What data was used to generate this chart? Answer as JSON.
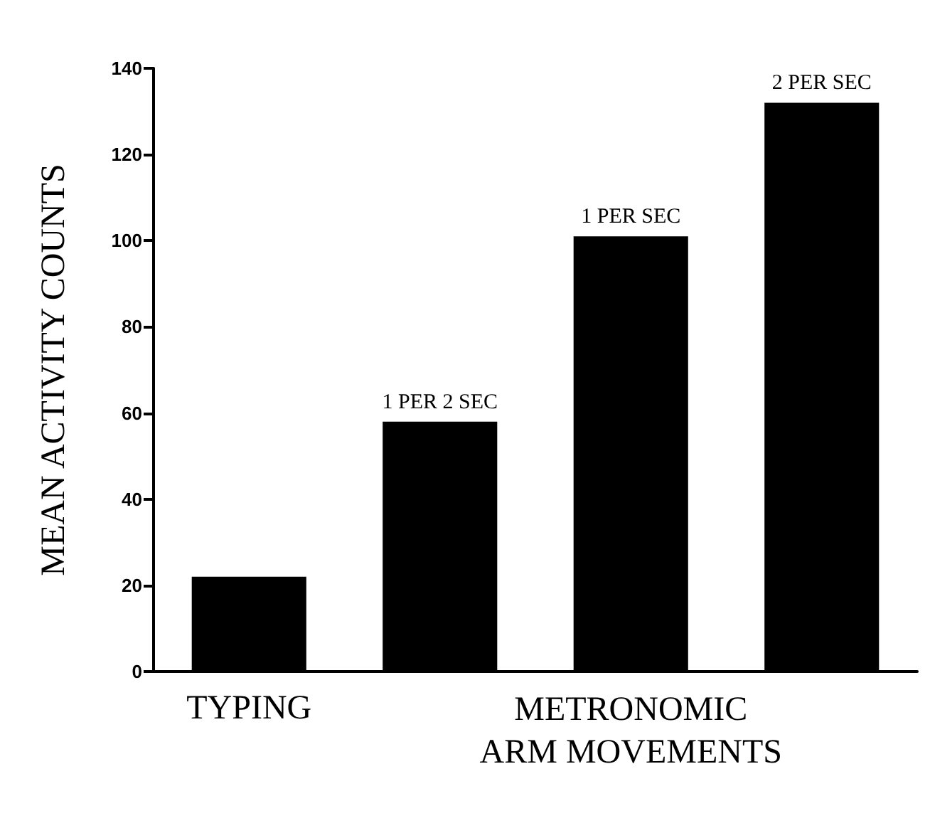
{
  "chart_data": {
    "type": "bar",
    "ylabel": "MEAN ACTIVITY COUNTS",
    "xlabel": "METRONOMIC ARM MOVEMENTS",
    "categories": [
      "TYPING",
      null,
      null,
      null
    ],
    "values": [
      22,
      58,
      101,
      132
    ],
    "color": "#000000",
    "ylim": [
      0,
      140
    ],
    "yticks": [
      0,
      20,
      40,
      60,
      80,
      100,
      120,
      140
    ],
    "grid": false,
    "annotations": [
      {
        "text": "1 PER 2 SEC",
        "y": 58
      },
      {
        "text": "1 PER SEC",
        "y": 101
      },
      {
        "text": "2 PER SEC",
        "y": 132
      }
    ]
  }
}
